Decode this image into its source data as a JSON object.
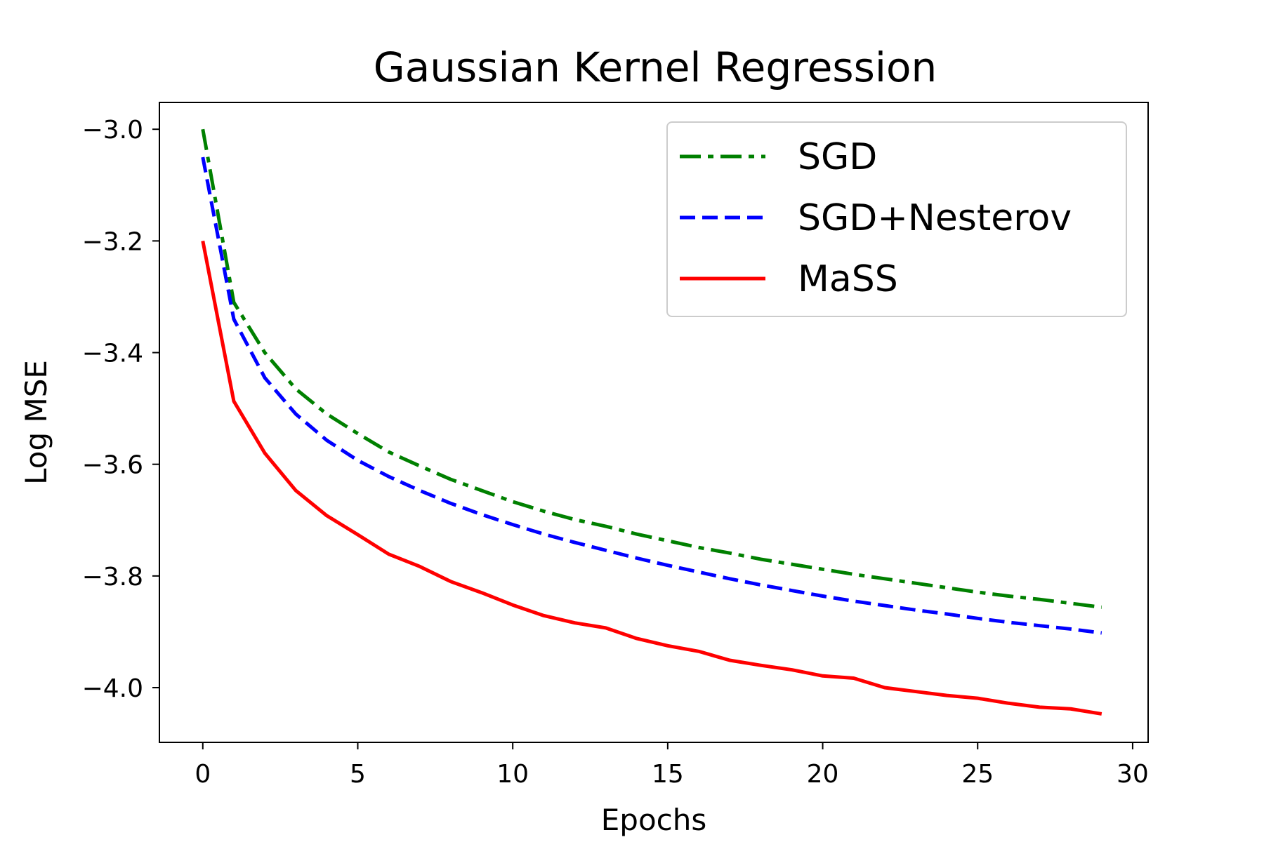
{
  "chart_data": {
    "type": "line",
    "title": "Gaussian Kernel Regression",
    "xlabel": "Epochs",
    "ylabel": "Log MSE",
    "xlim": [
      -1.4,
      30.5
    ],
    "ylim": [
      -4.098,
      -2.952
    ],
    "xticks": [
      0,
      5,
      10,
      15,
      20,
      25,
      30
    ],
    "yticks": [
      -3.0,
      -3.2,
      -3.4,
      -3.6,
      -3.8,
      -4.0
    ],
    "ytick_labels": [
      "−3.0",
      "−3.2",
      "−3.4",
      "−3.6",
      "−3.8",
      "−4.0"
    ],
    "grid": false,
    "legend_position": "top-right",
    "x": [
      0,
      1,
      2,
      3,
      4,
      5,
      6,
      7,
      8,
      9,
      10,
      11,
      12,
      13,
      14,
      15,
      16,
      17,
      18,
      19,
      20,
      21,
      22,
      23,
      24,
      25,
      26,
      27,
      28,
      29
    ],
    "series": [
      {
        "name": "SGD",
        "color": "#008000",
        "style": "dashdot",
        "values": [
          -3.0,
          -3.31,
          -3.4,
          -3.465,
          -3.51,
          -3.545,
          -3.578,
          -3.603,
          -3.627,
          -3.647,
          -3.667,
          -3.684,
          -3.699,
          -3.711,
          -3.725,
          -3.737,
          -3.749,
          -3.759,
          -3.77,
          -3.779,
          -3.788,
          -3.797,
          -3.805,
          -3.813,
          -3.821,
          -3.829,
          -3.836,
          -3.842,
          -3.849,
          -3.856
        ]
      },
      {
        "name": "SGD+Nesterov",
        "color": "#0000ff",
        "style": "dashed",
        "values": [
          -3.05,
          -3.34,
          -3.445,
          -3.51,
          -3.557,
          -3.593,
          -3.622,
          -3.647,
          -3.67,
          -3.69,
          -3.708,
          -3.725,
          -3.74,
          -3.754,
          -3.768,
          -3.781,
          -3.793,
          -3.805,
          -3.816,
          -3.826,
          -3.836,
          -3.845,
          -3.853,
          -3.861,
          -3.868,
          -3.876,
          -3.883,
          -3.889,
          -3.895,
          -3.902
        ]
      },
      {
        "name": "MaSS",
        "color": "#ff0000",
        "style": "solid",
        "values": [
          -3.2,
          -3.487,
          -3.58,
          -3.647,
          -3.692,
          -3.726,
          -3.761,
          -3.783,
          -3.81,
          -3.83,
          -3.852,
          -3.871,
          -3.884,
          -3.893,
          -3.912,
          -3.925,
          -3.935,
          -3.951,
          -3.96,
          -3.968,
          -3.979,
          -3.983,
          -4.0,
          -4.007,
          -4.014,
          -4.019,
          -4.028,
          -4.035,
          -4.038,
          -4.047
        ]
      }
    ]
  }
}
